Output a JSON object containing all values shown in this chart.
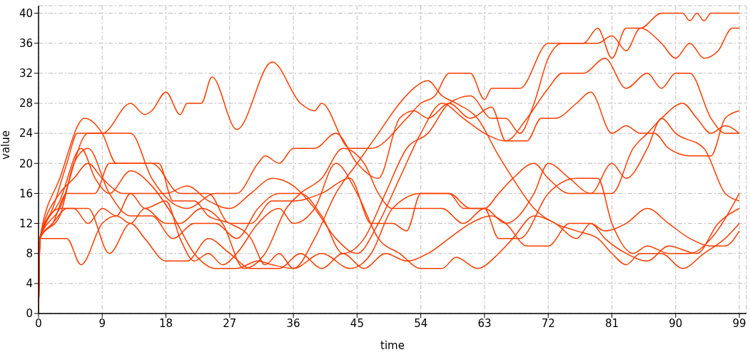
{
  "chart_data": {
    "type": "line",
    "xlabel": "time",
    "ylabel": "value",
    "xlim": [
      0,
      100
    ],
    "ylim": [
      0,
      41
    ],
    "xticks": [
      0,
      9,
      18,
      27,
      36,
      45,
      54,
      63,
      72,
      81,
      90,
      99
    ],
    "yticks": [
      0,
      4,
      8,
      12,
      16,
      20,
      24,
      28,
      32,
      36,
      40
    ],
    "grid": true,
    "line_style": "solid",
    "series": [
      {
        "color": "#ff3d00",
        "x": [
          0,
          0.2,
          2,
          4,
          5.5,
          9,
          13,
          15,
          16,
          18,
          20,
          21,
          23,
          24.5,
          28,
          33,
          37,
          39,
          40,
          44,
          47,
          52,
          54,
          56,
          58,
          61,
          63,
          64,
          68,
          72,
          77,
          79,
          81,
          83,
          85,
          88,
          91,
          92,
          93,
          94,
          95,
          99
        ],
        "values": [
          0,
          10,
          14,
          20,
          24,
          24,
          28,
          26.5,
          27,
          29.5,
          26.5,
          28,
          28,
          31.5,
          24.5,
          33.5,
          28,
          27,
          28,
          22,
          22,
          26,
          28,
          29,
          32,
          32,
          28.5,
          30,
          30,
          36,
          36,
          38,
          34,
          38,
          38,
          40,
          40,
          39,
          40,
          39,
          40,
          40
        ]
      },
      {
        "color": "#ff3d00",
        "x": [
          0,
          0.2,
          3,
          6.5,
          9,
          11,
          17,
          19,
          22,
          24,
          27,
          30,
          32,
          34,
          36,
          40,
          44,
          47,
          50,
          54,
          58,
          60,
          63,
          65,
          68,
          72,
          76,
          79,
          81,
          84,
          86,
          89,
          92,
          95,
          99
        ],
        "values": [
          0,
          10,
          18,
          26,
          24,
          20,
          20,
          15,
          15,
          13,
          12,
          10,
          6.5,
          8,
          6,
          8,
          6,
          8,
          14,
          16,
          16,
          14,
          14,
          10,
          10,
          16,
          18,
          18,
          12,
          8,
          9,
          8,
          8,
          10,
          16
        ]
      },
      {
        "color": "#ff3d00",
        "x": [
          0,
          0.2,
          3,
          7,
          13,
          16,
          21,
          25,
          28,
          31,
          32,
          34,
          36,
          39,
          42,
          45,
          48,
          51,
          53,
          55,
          58,
          61,
          64,
          66,
          69,
          71,
          73,
          76,
          78,
          81,
          83,
          85,
          87,
          89,
          92,
          95,
          97,
          99
        ],
        "values": [
          0,
          10,
          14,
          24,
          24,
          18,
          14,
          16,
          16,
          20,
          21,
          20,
          22,
          22,
          24,
          20,
          18,
          26,
          27,
          26,
          28,
          26,
          27.5,
          23,
          23,
          26,
          26,
          28,
          29.5,
          24,
          25,
          24,
          24,
          22,
          21,
          21,
          26,
          27
        ]
      },
      {
        "color": "#ff3d00",
        "x": [
          0,
          0.2,
          2,
          4,
          8,
          10,
          16,
          20,
          24,
          27,
          30,
          33,
          36,
          40,
          44,
          47,
          50,
          52,
          54,
          58,
          61,
          63,
          65,
          67,
          70,
          72,
          75,
          78,
          81,
          83,
          86,
          88,
          90,
          94,
          97,
          99
        ],
        "values": [
          0,
          10,
          12,
          16,
          16,
          20,
          20,
          16,
          16,
          12,
          12,
          15,
          15,
          16,
          18,
          12,
          12,
          11,
          16,
          16,
          14,
          14,
          16,
          18,
          20,
          18,
          16,
          16,
          20,
          18,
          22,
          26,
          24,
          22,
          16,
          15
        ]
      },
      {
        "color": "#ff3d00",
        "x": [
          0,
          0.2,
          3,
          5,
          7,
          9,
          11,
          13,
          15,
          18,
          20,
          22,
          24,
          26,
          28,
          31,
          34,
          36,
          39,
          42,
          45,
          48,
          51,
          54,
          57,
          59,
          62,
          65,
          67,
          70,
          73,
          76,
          78,
          80,
          83,
          86,
          89,
          93,
          96,
          99
        ],
        "values": [
          0,
          10,
          14,
          14,
          12,
          14,
          13,
          16,
          14,
          15,
          10,
          7,
          8,
          6.5,
          8,
          12,
          14,
          12,
          14,
          20,
          16,
          10,
          8,
          6,
          6,
          7.5,
          6,
          8,
          10,
          13,
          12,
          10,
          12,
          10,
          8,
          7,
          9,
          8,
          12,
          14
        ]
      },
      {
        "color": "#ff3d00",
        "x": [
          0,
          0.2,
          4,
          6,
          9,
          11,
          13,
          15,
          18,
          20,
          23,
          26,
          29,
          32,
          35,
          37,
          40,
          43,
          46,
          48,
          50,
          54,
          57,
          60,
          63,
          66,
          70,
          72,
          75,
          78,
          81,
          84,
          86,
          88,
          91,
          93,
          95,
          97,
          99
        ],
        "values": [
          0,
          10,
          10,
          6.5,
          12,
          13,
          12,
          14,
          12,
          12,
          14,
          12,
          6,
          8,
          14,
          16,
          18,
          22,
          20,
          16,
          14,
          14,
          14,
          12,
          14,
          12,
          16,
          20,
          18,
          16,
          16,
          22,
          24,
          26,
          28,
          26,
          24,
          25,
          24
        ]
      },
      {
        "color": "#ff3d00",
        "x": [
          0,
          0.2,
          3,
          6,
          8,
          10,
          13,
          16,
          19,
          22,
          25,
          28,
          31,
          33,
          36,
          39,
          42,
          45,
          48,
          51,
          53,
          55,
          57,
          59,
          62,
          65,
          67,
          70,
          73,
          76,
          79,
          81,
          83,
          85,
          88,
          91,
          94,
          97,
          99
        ],
        "values": [
          0,
          10,
          15,
          22,
          18,
          16,
          19,
          17,
          13,
          8,
          6,
          6,
          7,
          6.5,
          6,
          10,
          16,
          20,
          24,
          28,
          30,
          31,
          29,
          28,
          26,
          21,
          18,
          14,
          12,
          11,
          10,
          8,
          6.5,
          8,
          8,
          6,
          8,
          10,
          12
        ]
      },
      {
        "color": "#ff3d00",
        "x": [
          0,
          0.2,
          3,
          5,
          7,
          9,
          12,
          15,
          18,
          21,
          24,
          27,
          30,
          33,
          36,
          39,
          42,
          45,
          48,
          51,
          54,
          57,
          60,
          63,
          66,
          69,
          72,
          74,
          77,
          80,
          83,
          86,
          88,
          90,
          92,
          95,
          97,
          99
        ],
        "values": [
          0,
          10,
          16,
          18,
          20,
          18,
          16,
          16,
          16,
          17,
          15,
          14,
          16,
          18,
          17,
          14,
          10,
          8,
          12,
          18,
          24,
          28,
          26,
          24,
          23,
          26,
          30,
          32,
          32,
          34,
          30,
          32,
          30,
          32,
          32,
          26,
          24,
          24
        ]
      },
      {
        "color": "#ff3d00",
        "x": [
          0,
          0.2,
          3,
          5,
          7,
          10,
          13,
          16,
          19,
          22,
          25,
          28,
          31,
          34,
          37,
          40,
          43,
          46,
          49,
          52,
          55,
          58,
          61,
          64,
          66,
          68,
          70,
          72,
          74,
          77,
          79,
          81,
          83,
          85,
          88,
          90,
          92,
          94,
          96,
          98,
          99
        ],
        "values": [
          0,
          10,
          13,
          20,
          22,
          16,
          13,
          13,
          10,
          12,
          12,
          10,
          14,
          16,
          16,
          13,
          8,
          10,
          16,
          22,
          24,
          28,
          29,
          26,
          26,
          24,
          28,
          34,
          36,
          36,
          36,
          37,
          35,
          38,
          36,
          34,
          36,
          34,
          35,
          38,
          38
        ]
      },
      {
        "color": "#ff3d00",
        "x": [
          0,
          0.2,
          2,
          4,
          7,
          10,
          13,
          15,
          18,
          21,
          24,
          27,
          30,
          34,
          37,
          40,
          43,
          46,
          49,
          52,
          55,
          58,
          61,
          64,
          66,
          69,
          72,
          75,
          78,
          80,
          83,
          86,
          89,
          92,
          95,
          97,
          99
        ],
        "values": [
          0,
          10,
          12,
          14,
          14,
          8,
          12,
          10,
          7,
          7,
          10,
          8,
          6,
          6,
          8,
          6,
          8,
          6,
          8,
          7,
          8,
          10,
          12,
          13,
          12,
          9,
          9,
          12,
          12,
          11,
          12,
          14,
          12,
          10,
          9,
          9,
          11
        ]
      }
    ]
  }
}
